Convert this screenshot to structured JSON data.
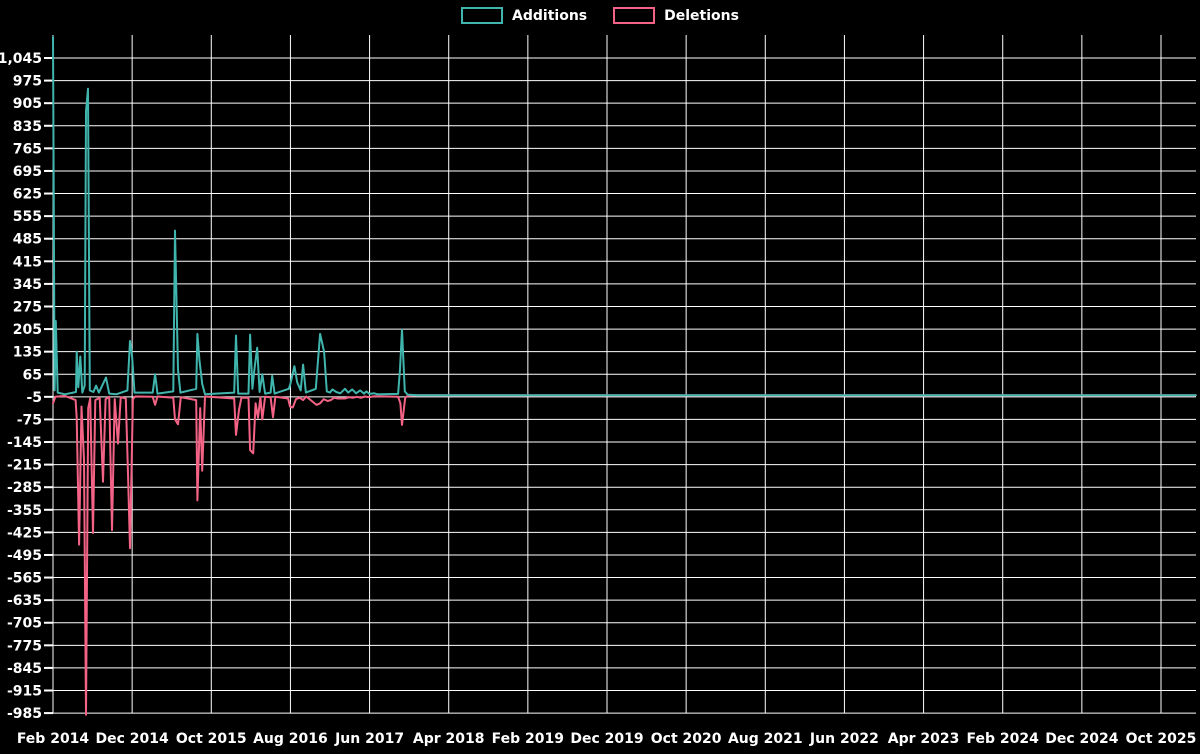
{
  "legend": {
    "items": [
      {
        "label": "Additions",
        "color": "#40b5ad"
      },
      {
        "label": "Deletions",
        "color": "#f46386"
      }
    ]
  },
  "colors": {
    "background": "#000000",
    "gridline": "#ffffff",
    "text": "#ffffff",
    "additions": "#40b5ad",
    "deletions": "#f46386"
  },
  "chart_data": {
    "type": "line",
    "title": "",
    "xlabel": "",
    "ylabel": "",
    "grid": true,
    "legend_position": "top-center",
    "y_axis": {
      "min": -985,
      "max": 1045,
      "step": 70,
      "tick_labels": [
        "1,045",
        "975",
        "905",
        "835",
        "765",
        "695",
        "625",
        "555",
        "485",
        "415",
        "345",
        "275",
        "205",
        "135",
        "65",
        "-5",
        "-75",
        "-145",
        "-215",
        "-285",
        "-355",
        "-425",
        "-495",
        "-565",
        "-635",
        "-705",
        "-775",
        "-845",
        "-915",
        "-985"
      ]
    },
    "x_axis": {
      "unit": "months since Feb 2014",
      "tick_interval_months": 10,
      "tick_labels": [
        "Feb 2014",
        "Dec 2014",
        "Oct 2015",
        "Aug 2016",
        "Jun 2017",
        "Apr 2018",
        "Feb 2019",
        "Dec 2019",
        "Oct 2020",
        "Aug 2021",
        "Jun 2022",
        "Apr 2023",
        "Feb 2024",
        "Dec 2024",
        "Oct 2025"
      ],
      "total_months_shown": 144.4
    },
    "series": [
      {
        "name": "Additions",
        "color": "#40b5ad",
        "points": [
          [
            0,
            1110
          ],
          [
            0.2,
            15
          ],
          [
            0.35,
            230
          ],
          [
            0.6,
            8
          ],
          [
            1.5,
            3
          ],
          [
            2.9,
            10
          ],
          [
            3.0,
            135
          ],
          [
            3.2,
            25
          ],
          [
            3.45,
            120
          ],
          [
            3.7,
            8
          ],
          [
            4.0,
            30
          ],
          [
            4.17,
            880
          ],
          [
            4.42,
            950
          ],
          [
            4.65,
            15
          ],
          [
            5.1,
            10
          ],
          [
            5.45,
            30
          ],
          [
            5.8,
            8
          ],
          [
            6.7,
            55
          ],
          [
            7.1,
            5
          ],
          [
            8.0,
            3
          ],
          [
            9.4,
            15
          ],
          [
            9.73,
            168
          ],
          [
            10.0,
            120
          ],
          [
            10.3,
            8
          ],
          [
            12.6,
            8
          ],
          [
            12.9,
            65
          ],
          [
            13.2,
            5
          ],
          [
            15.2,
            12
          ],
          [
            15.42,
            510
          ],
          [
            15.8,
            80
          ],
          [
            16.1,
            8
          ],
          [
            18.1,
            20
          ],
          [
            18.25,
            190
          ],
          [
            18.5,
            110
          ],
          [
            18.85,
            35
          ],
          [
            19.2,
            3
          ],
          [
            22.9,
            8
          ],
          [
            23.12,
            185
          ],
          [
            23.4,
            5
          ],
          [
            24.7,
            5
          ],
          [
            24.9,
            188
          ],
          [
            25.2,
            20
          ],
          [
            25.45,
            80
          ],
          [
            25.8,
            147
          ],
          [
            26.1,
            10
          ],
          [
            26.45,
            65
          ],
          [
            26.8,
            5
          ],
          [
            27.5,
            8
          ],
          [
            27.7,
            60
          ],
          [
            28.0,
            5
          ],
          [
            29.8,
            20
          ],
          [
            30.0,
            35
          ],
          [
            30.5,
            90
          ],
          [
            30.85,
            40
          ],
          [
            31.3,
            15
          ],
          [
            31.6,
            95
          ],
          [
            31.95,
            8
          ],
          [
            33.2,
            20
          ],
          [
            33.4,
            80
          ],
          [
            33.75,
            190
          ],
          [
            34.25,
            135
          ],
          [
            34.6,
            12
          ],
          [
            35.0,
            8
          ],
          [
            35.3,
            18
          ],
          [
            35.8,
            10
          ],
          [
            36.3,
            6
          ],
          [
            36.9,
            20
          ],
          [
            37.3,
            8
          ],
          [
            37.8,
            18
          ],
          [
            38.3,
            6
          ],
          [
            38.8,
            15
          ],
          [
            39.3,
            5
          ],
          [
            39.6,
            12
          ],
          [
            40.0,
            4
          ],
          [
            40.6,
            6
          ],
          [
            41.0,
            3
          ],
          [
            43.6,
            4
          ],
          [
            43.85,
            80
          ],
          [
            44.1,
            203
          ],
          [
            44.45,
            12
          ],
          [
            44.8,
            2
          ],
          [
            46,
            0
          ],
          [
            144.4,
            0
          ]
        ]
      },
      {
        "name": "Deletions",
        "color": "#f46386",
        "points": [
          [
            0,
            -25
          ],
          [
            0.3,
            -5
          ],
          [
            1.5,
            -2
          ],
          [
            2.85,
            -15
          ],
          [
            3.0,
            -70
          ],
          [
            3.3,
            -463
          ],
          [
            3.6,
            -35
          ],
          [
            3.92,
            -200
          ],
          [
            4.17,
            -990
          ],
          [
            4.45,
            -40
          ],
          [
            4.7,
            -10
          ],
          [
            5.05,
            -427
          ],
          [
            5.35,
            -15
          ],
          [
            5.9,
            -8
          ],
          [
            6.32,
            -268
          ],
          [
            6.65,
            -12
          ],
          [
            7.1,
            -5
          ],
          [
            7.46,
            -418
          ],
          [
            7.8,
            -12
          ],
          [
            8.21,
            -150
          ],
          [
            8.55,
            -6
          ],
          [
            9.2,
            -10
          ],
          [
            9.48,
            -243
          ],
          [
            9.73,
            -474
          ],
          [
            10.1,
            -12
          ],
          [
            10.4,
            -4
          ],
          [
            12.6,
            -5
          ],
          [
            12.9,
            -30
          ],
          [
            13.2,
            -4
          ],
          [
            15.2,
            -8
          ],
          [
            15.42,
            -75
          ],
          [
            15.8,
            -90
          ],
          [
            16.15,
            -6
          ],
          [
            18.1,
            -15
          ],
          [
            18.25,
            -326
          ],
          [
            18.6,
            -40
          ],
          [
            18.85,
            -234
          ],
          [
            19.2,
            -4
          ],
          [
            22.9,
            -10
          ],
          [
            23.12,
            -123
          ],
          [
            23.5,
            -45
          ],
          [
            23.8,
            -8
          ],
          [
            24.7,
            -8
          ],
          [
            24.9,
            -170
          ],
          [
            25.3,
            -180
          ],
          [
            25.6,
            -25
          ],
          [
            25.9,
            -70
          ],
          [
            26.2,
            -6
          ],
          [
            26.45,
            -75
          ],
          [
            26.8,
            -5
          ],
          [
            27.5,
            -6
          ],
          [
            27.8,
            -68
          ],
          [
            28.1,
            -5
          ],
          [
            29.7,
            -10
          ],
          [
            29.95,
            -35
          ],
          [
            30.3,
            -38
          ],
          [
            30.7,
            -12
          ],
          [
            31.2,
            -8
          ],
          [
            31.6,
            -15
          ],
          [
            32.0,
            -4
          ],
          [
            33.3,
            -30
          ],
          [
            33.75,
            -25
          ],
          [
            34.2,
            -12
          ],
          [
            34.7,
            -18
          ],
          [
            35.1,
            -15
          ],
          [
            35.5,
            -8
          ],
          [
            36.0,
            -10
          ],
          [
            36.9,
            -10
          ],
          [
            37.4,
            -6
          ],
          [
            37.9,
            -8
          ],
          [
            38.4,
            -5
          ],
          [
            38.9,
            -8
          ],
          [
            39.4,
            -4
          ],
          [
            40.0,
            -6
          ],
          [
            40.6,
            -3
          ],
          [
            43.6,
            -5
          ],
          [
            43.9,
            -25
          ],
          [
            44.1,
            -92
          ],
          [
            44.5,
            -8
          ],
          [
            44.8,
            -2
          ],
          [
            46,
            0
          ],
          [
            144.4,
            0
          ]
        ]
      }
    ]
  }
}
